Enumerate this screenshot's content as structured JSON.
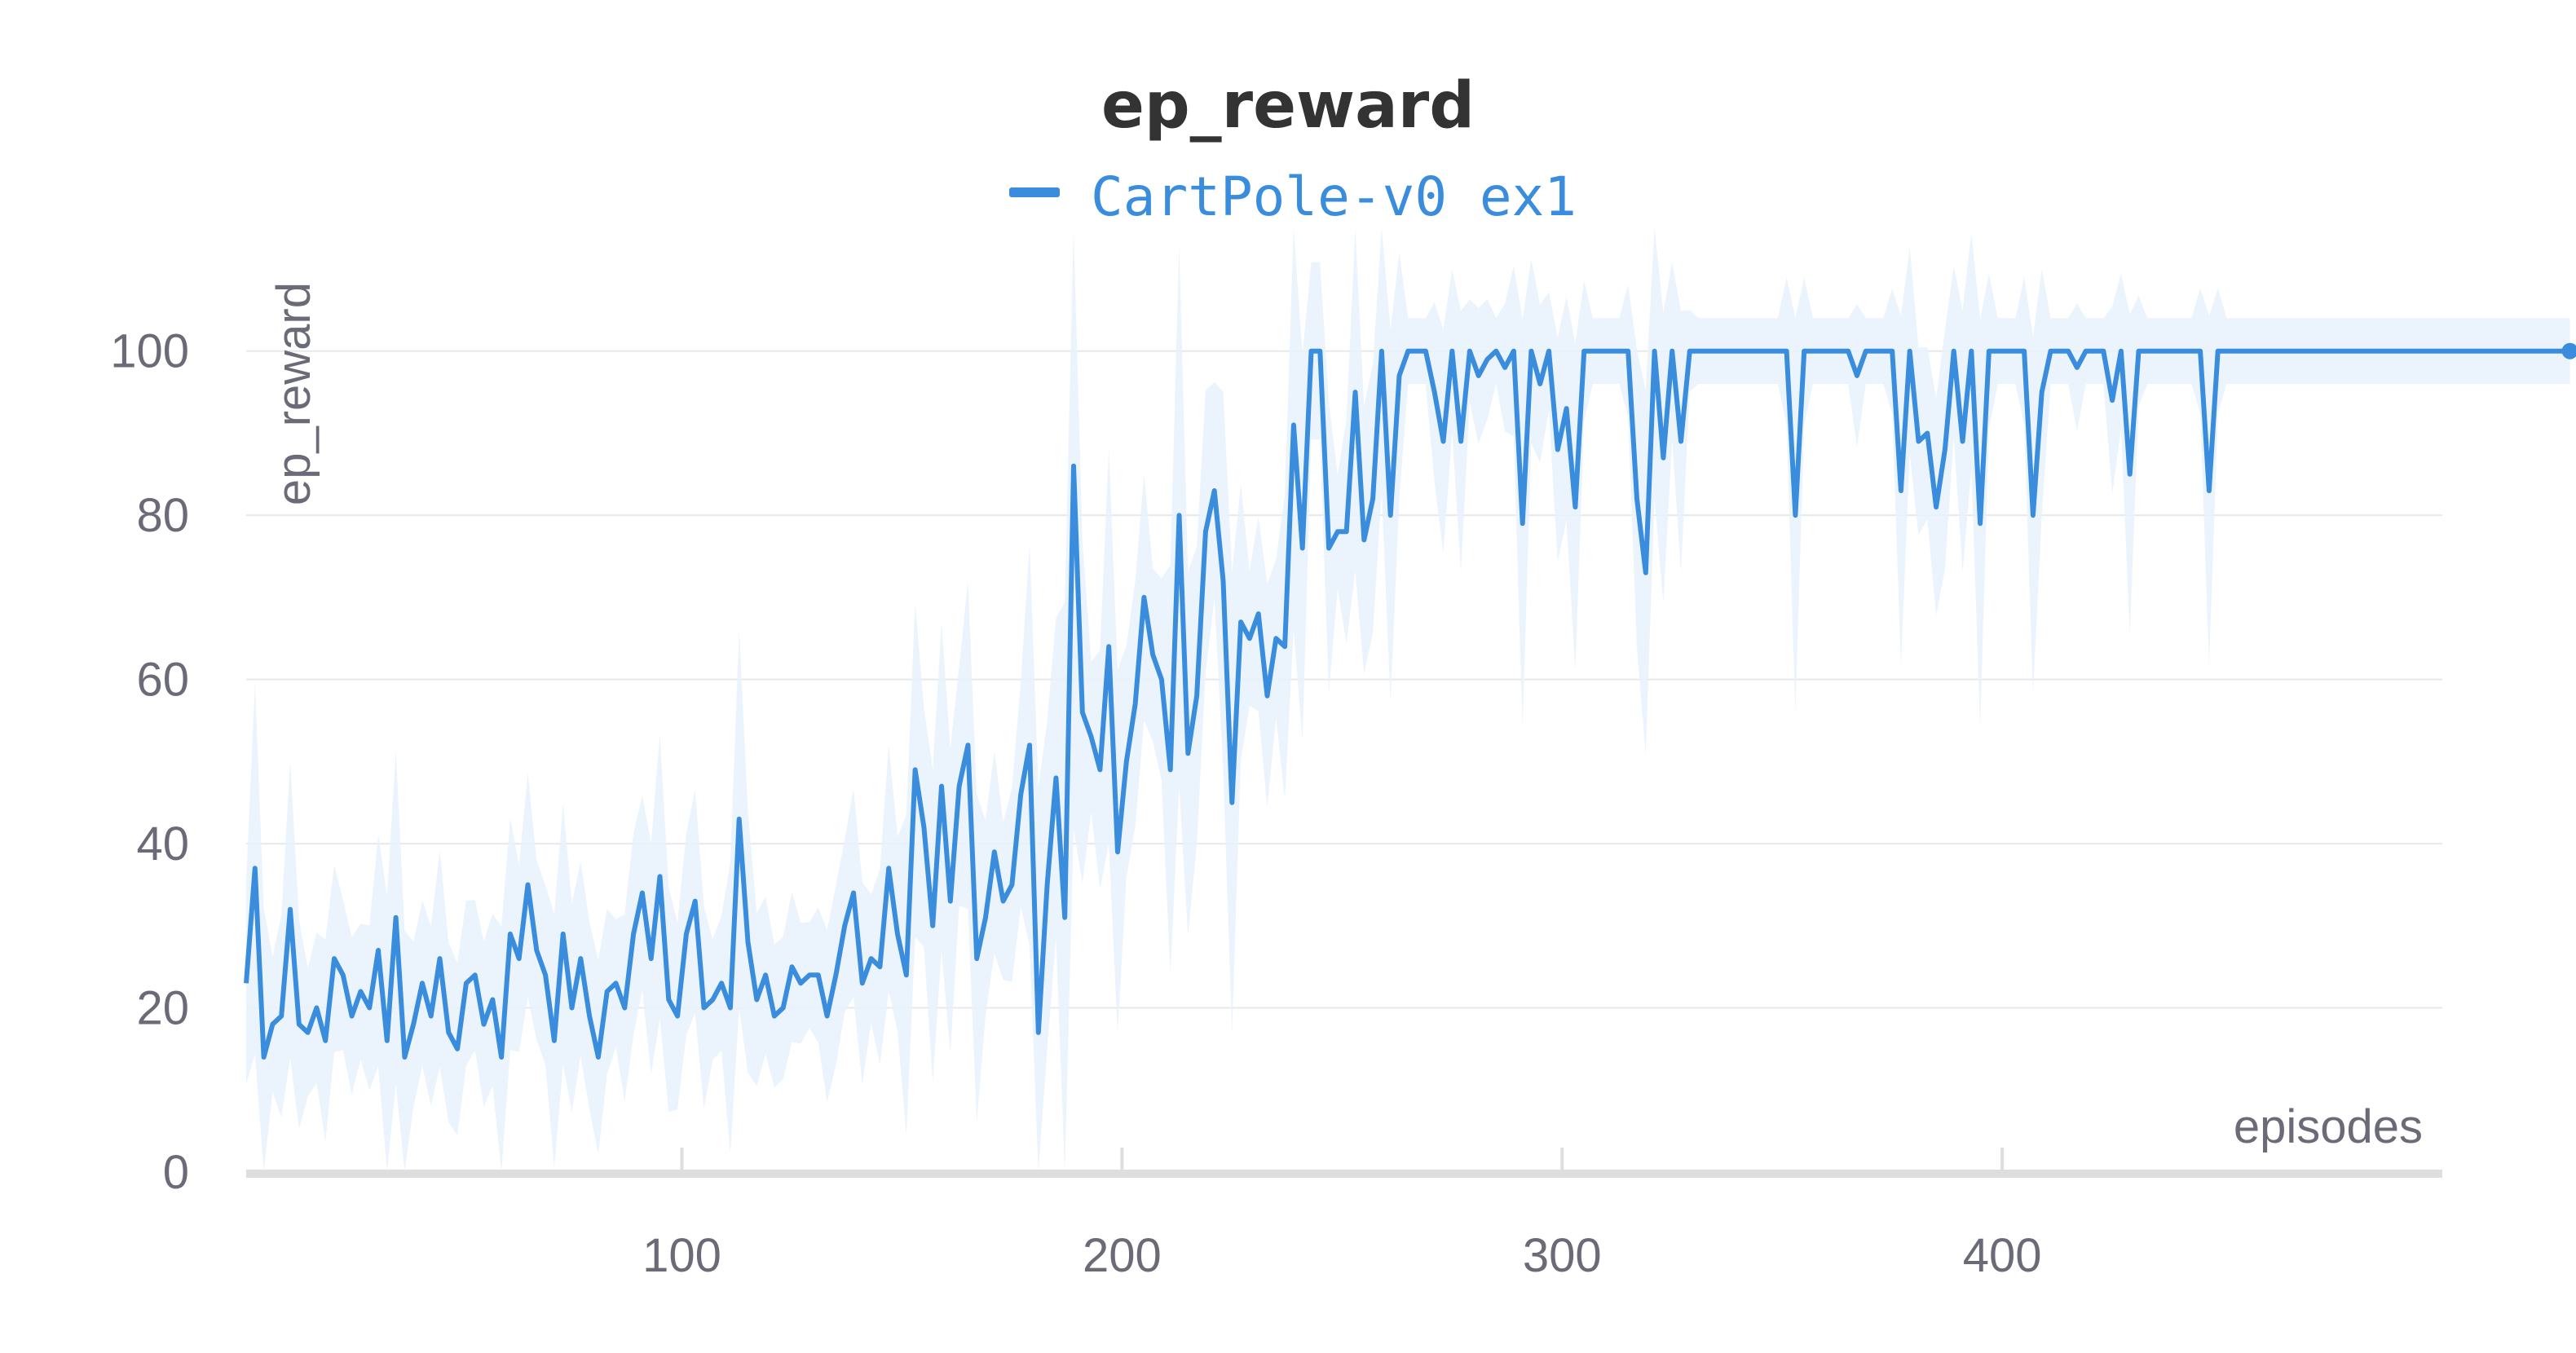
{
  "chart_data": {
    "type": "line",
    "title": "ep_reward",
    "xlabel": "episodes",
    "ylabel": "ep_reward",
    "xlim": [
      1,
      500
    ],
    "ylim": [
      0,
      110
    ],
    "x_ticks": [
      100,
      200,
      300,
      400
    ],
    "y_ticks": [
      0,
      20,
      40,
      60,
      80,
      100
    ],
    "grid": true,
    "legend": "top-center",
    "colors": {
      "line": "#3a8ddd",
      "band": "#e8f2fc"
    },
    "series": [
      {
        "name": "CartPole-v0 ex1",
        "x_start": 1,
        "x_step": 2,
        "values": [
          23,
          37,
          14,
          18,
          19,
          32,
          18,
          17,
          20,
          16,
          26,
          24,
          19,
          22,
          20,
          27,
          16,
          31,
          14,
          18,
          23,
          19,
          26,
          17,
          15,
          23,
          24,
          18,
          21,
          14,
          29,
          26,
          35,
          27,
          24,
          16,
          29,
          20,
          26,
          19,
          14,
          22,
          23,
          20,
          29,
          34,
          26,
          36,
          21,
          19,
          29,
          33,
          20,
          21,
          23,
          20,
          43,
          28,
          21,
          24,
          19,
          20,
          25,
          23,
          24,
          24,
          19,
          24,
          30,
          34,
          23,
          26,
          25,
          37,
          29,
          24,
          49,
          42,
          30,
          47,
          33,
          47,
          52,
          26,
          31,
          39,
          33,
          35,
          46,
          52,
          17,
          35,
          48,
          31,
          86,
          56,
          53,
          49,
          64,
          39,
          50,
          57,
          70,
          63,
          60,
          49,
          80,
          51,
          58,
          78,
          83,
          72,
          45,
          67,
          65,
          68,
          58,
          65,
          64,
          91,
          76,
          100,
          100,
          76,
          78,
          78,
          95,
          77,
          82,
          100,
          80,
          97,
          100,
          100,
          100,
          95,
          89,
          100,
          89,
          100,
          97,
          99,
          100,
          98,
          100,
          79,
          100,
          96,
          100,
          88,
          93,
          81,
          100,
          100,
          100,
          100,
          100,
          100,
          82,
          73,
          100,
          87,
          100,
          89,
          100,
          100,
          100,
          100,
          100,
          100,
          100,
          100,
          100,
          100,
          100,
          100,
          80,
          100,
          100,
          100,
          100,
          100,
          100,
          97,
          100,
          100,
          100,
          100,
          83,
          100,
          89,
          90,
          81,
          88,
          100,
          89,
          100,
          79,
          100,
          100,
          100,
          100,
          100,
          80,
          95,
          100,
          100,
          100,
          98,
          100,
          100,
          100,
          94,
          100,
          85,
          100,
          100,
          100,
          100,
          100,
          100,
          100,
          100,
          83,
          100,
          100,
          100,
          100,
          100,
          100,
          100,
          100,
          100,
          100,
          100,
          100,
          100,
          100,
          100,
          100,
          100,
          100,
          100,
          100,
          100,
          100,
          100,
          100,
          100,
          100,
          100,
          100,
          100,
          100,
          100,
          100,
          100,
          100,
          100,
          100,
          100,
          100,
          100,
          100,
          100
        ]
      }
    ]
  }
}
